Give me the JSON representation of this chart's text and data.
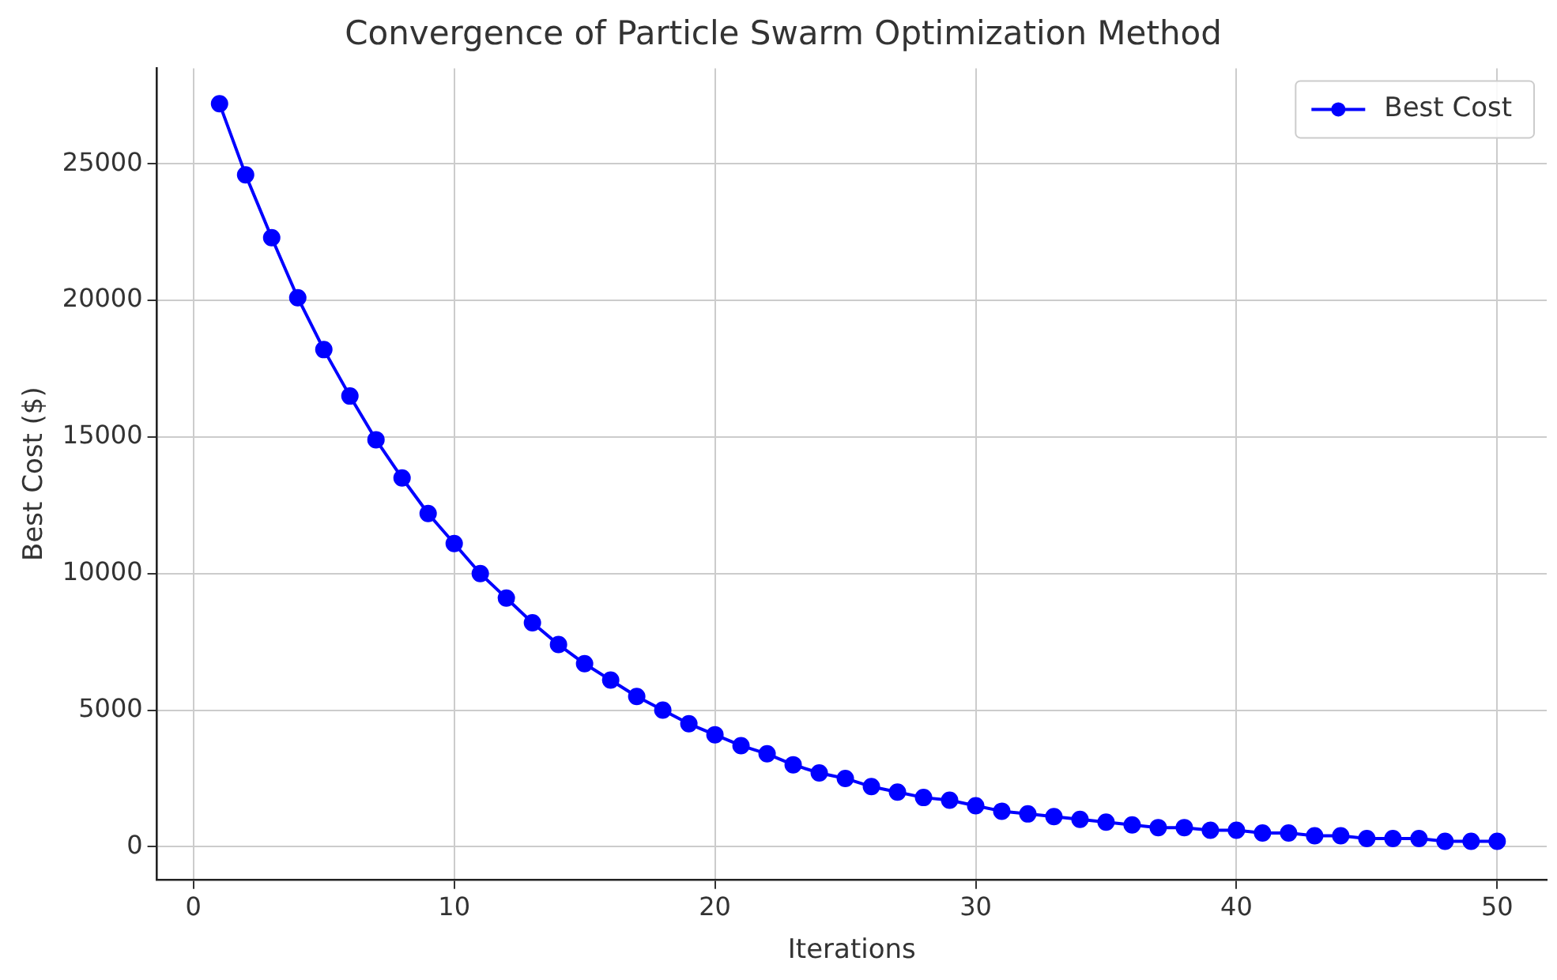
{
  "chart_data": {
    "type": "line",
    "title": "Convergence of Particle Swarm Optimization Method",
    "xlabel": "Iterations",
    "ylabel": "Best Cost ($)",
    "x": [
      1,
      2,
      3,
      4,
      5,
      6,
      7,
      8,
      9,
      10,
      11,
      12,
      13,
      14,
      15,
      16,
      17,
      18,
      19,
      20,
      21,
      22,
      23,
      24,
      25,
      26,
      27,
      28,
      29,
      30,
      31,
      32,
      33,
      34,
      35,
      36,
      37,
      38,
      39,
      40,
      41,
      42,
      43,
      44,
      45,
      46,
      47,
      48,
      49,
      50
    ],
    "series": [
      {
        "name": "Best Cost",
        "color": "#0000ff",
        "values": [
          27200,
          24600,
          22300,
          20100,
          18200,
          16500,
          14900,
          13500,
          12200,
          11100,
          10000,
          9100,
          8200,
          7400,
          6700,
          6100,
          5500,
          5000,
          4500,
          4100,
          3700,
          3400,
          3000,
          2700,
          2500,
          2200,
          2000,
          1800,
          1700,
          1500,
          1300,
          1200,
          1100,
          1000,
          900,
          800,
          700,
          700,
          600,
          600,
          500,
          500,
          400,
          400,
          300,
          300,
          300,
          200,
          200,
          200
        ]
      }
    ],
    "xlim": [
      -1.4,
      51.9
    ],
    "xticks": [
      0,
      10,
      20,
      30,
      40,
      50
    ],
    "ylim": [
      -1200,
      28500
    ],
    "yticks": [
      0,
      5000,
      10000,
      15000,
      20000,
      25000
    ],
    "grid": true,
    "legend": "top right",
    "marker": "circle",
    "line_style": "solid"
  }
}
